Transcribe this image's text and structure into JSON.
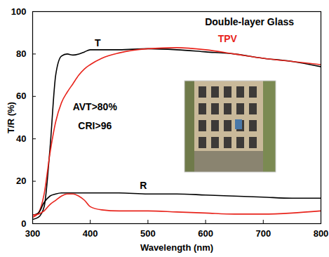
{
  "chart_data": {
    "type": "line",
    "x_label": "Wavelength (nm)",
    "y_label": "T/R (%)",
    "x": [
      300,
      310,
      320,
      330,
      340,
      350,
      360,
      370,
      380,
      390,
      400,
      420,
      450,
      500,
      550,
      600,
      650,
      700,
      750,
      800
    ],
    "series": [
      {
        "name": "Double-layer Glass",
        "color": "#000000",
        "values": [
          2,
          3,
          8,
          35,
          70,
          79,
          80,
          79.5,
          80,
          81,
          82,
          82,
          82,
          82.5,
          82,
          81,
          80,
          78,
          76.5,
          74
        ]
      },
      {
        "name": "TPV",
        "color": "#e8241c",
        "values": [
          3,
          5,
          14,
          33,
          48,
          57,
          62,
          66,
          70,
          73,
          75,
          78,
          80.5,
          82.5,
          83,
          82,
          80,
          78,
          76.5,
          75
        ]
      },
      {
        "name": "Double-layer Glass",
        "color": "#000000",
        "values": [
          4,
          5,
          10,
          13,
          14,
          14.5,
          14.5,
          14.5,
          14.5,
          14.5,
          14.5,
          14.5,
          14.5,
          14,
          14,
          13.5,
          13,
          12.5,
          12,
          12
        ]
      },
      {
        "name": "TPV",
        "color": "#e8241c",
        "values": [
          4,
          4.5,
          6,
          9,
          11,
          13,
          14,
          14,
          13,
          11,
          8,
          6.5,
          6,
          6,
          5.5,
          5,
          4.5,
          4.5,
          5,
          6
        ]
      }
    ],
    "annotations": [
      {
        "text": "T",
        "x": 413,
        "y": 85,
        "color": "#000000"
      },
      {
        "text": "R",
        "x": 492,
        "y": 18,
        "color": "#000000"
      },
      {
        "text": "Double-layer Glass",
        "x": 676,
        "y": 95,
        "color": "#000000"
      },
      {
        "text": "TPV",
        "x": 638,
        "y": 87,
        "color": "#e8241c"
      },
      {
        "text": "AVT>80%",
        "x": 408,
        "y": 55,
        "color": "#000000"
      },
      {
        "text": "CRI>96",
        "x": 408,
        "y": 46,
        "color": "#000000"
      }
    ],
    "xlim": [
      300,
      800
    ],
    "xticks": [
      300,
      400,
      500,
      600,
      700,
      800
    ],
    "ylim": [
      0,
      100
    ],
    "yticks": [
      0,
      20,
      40,
      60,
      80,
      100
    ],
    "grid": false
  }
}
